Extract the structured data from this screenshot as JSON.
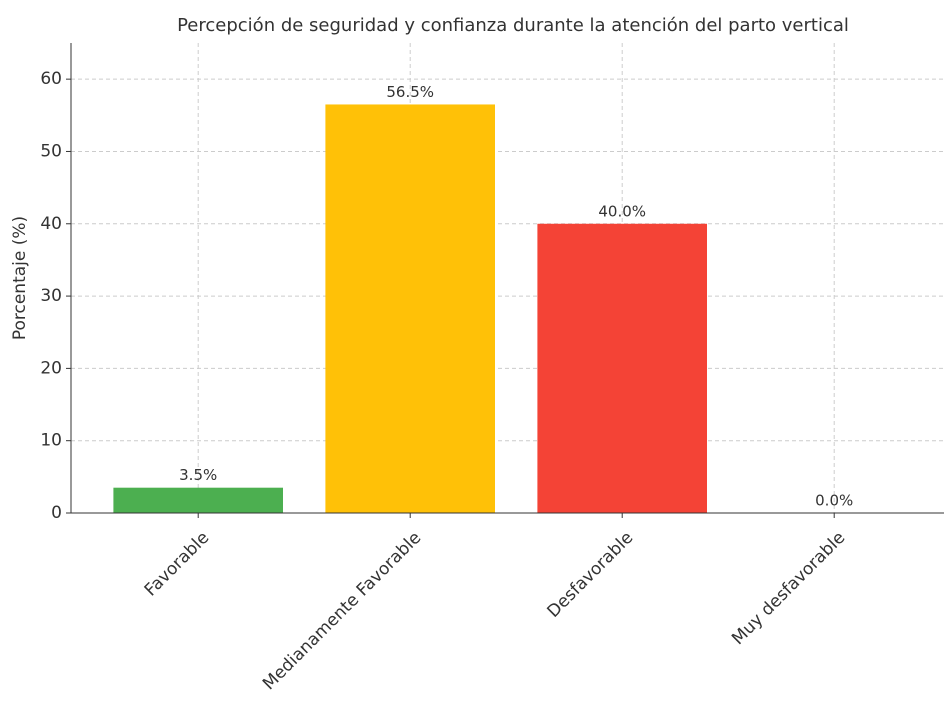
{
  "chart_data": {
    "type": "bar",
    "title": "Percepción de seguridad y confianza durante la atención del parto vertical",
    "ylabel": "Porcentaje (%)",
    "categories": [
      "Favorable",
      "Medianamente Favorable",
      "Desfavorable",
      "Muy desfavorable"
    ],
    "values": [
      3.5,
      56.5,
      40.0,
      0.0
    ],
    "value_labels": [
      "3.5%",
      "56.5%",
      "40.0%",
      "0.0%"
    ],
    "colors": [
      "#4caf50",
      "#ffc107",
      "#f44336"
    ],
    "ylim": [
      0,
      65
    ],
    "yticks": [
      0,
      10,
      20,
      30,
      40,
      50,
      60
    ],
    "grid": true
  }
}
